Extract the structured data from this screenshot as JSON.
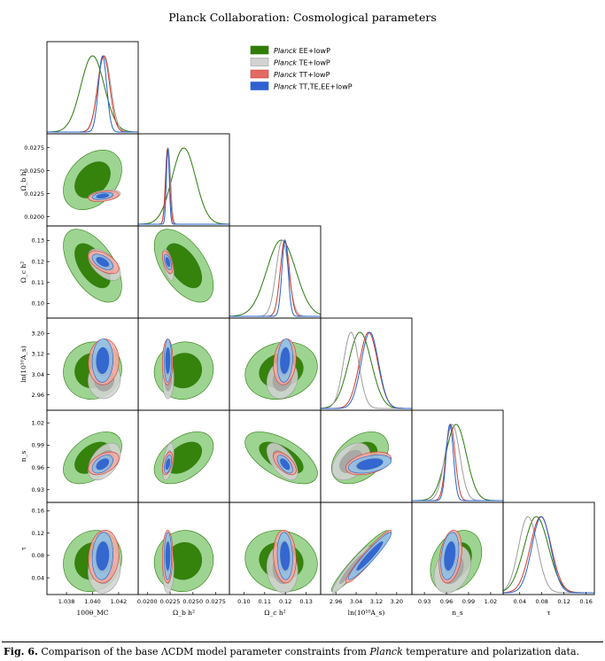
{
  "figure": {
    "title": "Planck Collaboration: Cosmological parameters",
    "caption_label": "Fig. 6.",
    "caption_text_1": " Comparison of the base ΛCDM model parameter constraints from ",
    "caption_italic": "Planck",
    "caption_text_2": " temperature and polarization data."
  },
  "chart_data": {
    "type": "corner",
    "title": "Planck Collaboration: Cosmological parameters",
    "parameters": [
      {
        "label": "100θ_MC",
        "range": [
          1.0365,
          1.0435
        ],
        "ticks": [
          1.038,
          1.04,
          1.042
        ],
        "tick_labels": [
          "1.038",
          "1.040",
          "1.042"
        ]
      },
      {
        "label": "Ω_b h²",
        "range": [
          0.019,
          0.029
        ],
        "ticks": [
          0.02,
          0.0225,
          0.025,
          0.0275
        ],
        "tick_labels": [
          "0.0200",
          "0.0225",
          "0.0250",
          "0.0275"
        ]
      },
      {
        "label": "Ω_c h²",
        "range": [
          0.093,
          0.137
        ],
        "ticks": [
          0.1,
          0.11,
          0.12,
          0.13
        ],
        "tick_labels": [
          "0.10",
          "0.11",
          "0.12",
          "0.13"
        ]
      },
      {
        "label": "ln(10¹⁰A_s)",
        "range": [
          2.9,
          3.26
        ],
        "ticks": [
          2.96,
          3.04,
          3.12,
          3.2
        ],
        "tick_labels": [
          "2.96",
          "3.04",
          "3.12",
          "3.20"
        ]
      },
      {
        "label": "n_s",
        "range": [
          0.913,
          1.037
        ],
        "ticks": [
          0.93,
          0.96,
          0.99,
          1.02
        ],
        "tick_labels": [
          "0.93",
          "0.96",
          "0.99",
          "1.02"
        ]
      },
      {
        "label": "τ",
        "range": [
          0.01,
          0.175
        ],
        "ticks": [
          0.04,
          0.08,
          0.12,
          0.16
        ],
        "tick_labels": [
          "0.04",
          "0.08",
          "0.12",
          "0.16"
        ]
      }
    ],
    "series": [
      {
        "name": "Planck EE+lowP",
        "italic_part": "Planck",
        "rest": " EE+lowP",
        "color": "#2a7a0a",
        "fill_outer": "#8ccc7e",
        "fill_inner": "#2f7d06",
        "means": [
          1.04,
          0.024,
          0.118,
          3.055,
          0.973,
          0.07
        ],
        "sigmas": [
          0.0009,
          0.0013,
          0.007,
          0.045,
          0.014,
          0.022
        ]
      },
      {
        "name": "Planck TE+lowP",
        "italic_part": "Planck",
        "rest": " TE+lowP",
        "color": "#9c9c9c",
        "fill_outer": "#d2d2d2",
        "fill_inner": "#a6a6a6",
        "means": [
          1.0409,
          0.02229,
          0.1185,
          3.02,
          0.968,
          0.055
        ],
        "sigmas": [
          0.0005,
          0.00025,
          0.003,
          0.03,
          0.01,
          0.017
        ]
      },
      {
        "name": "Planck TT+lowP",
        "italic_part": "Planck",
        "rest": " TT+lowP",
        "color": "#d23a2e",
        "fill_outer": "#f1a9a1",
        "fill_inner": "#e26a62",
        "means": [
          1.04085,
          0.02222,
          0.1197,
          3.089,
          0.9655,
          0.078
        ],
        "sigmas": [
          0.00047,
          0.00023,
          0.0022,
          0.036,
          0.0062,
          0.019
        ]
      },
      {
        "name": "Planck TT,TE,EE+lowP",
        "italic_part": "Planck",
        "rest": " TT,TE,EE+lowP",
        "color": "#2463cf",
        "fill_outer": "#88c4ea",
        "fill_inner": "#2f62d0",
        "means": [
          1.04077,
          0.02225,
          0.1198,
          3.094,
          0.9645,
          0.079
        ],
        "sigmas": [
          0.00032,
          0.00016,
          0.0015,
          0.034,
          0.0049,
          0.017
        ]
      }
    ],
    "legend_position": "top-right"
  }
}
